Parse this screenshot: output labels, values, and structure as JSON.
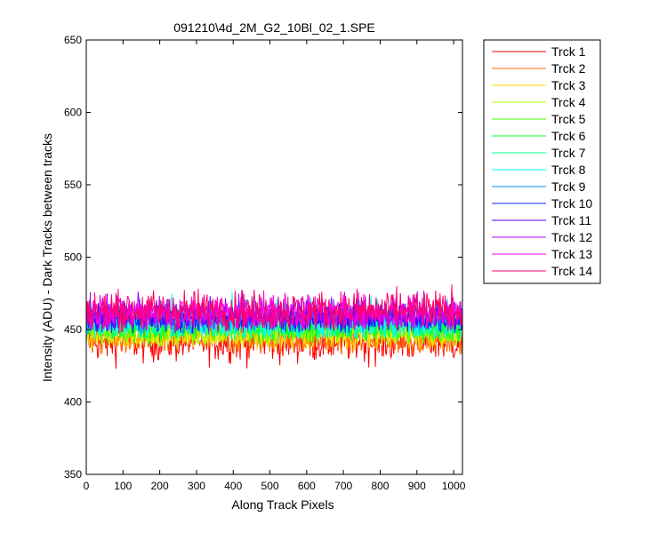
{
  "chart_data": {
    "type": "line",
    "title": "091210\\4d_2M_G2_10Bl_02_1.SPE",
    "xlabel": "Along Track Pixels",
    "ylabel": "Intensity (ADU) - Dark Tracks between tracks",
    "xlim": [
      0,
      1024
    ],
    "ylim": [
      350,
      650
    ],
    "x_ticks": [
      0,
      100,
      200,
      300,
      400,
      500,
      600,
      700,
      800,
      900,
      1000
    ],
    "y_ticks": [
      350,
      400,
      450,
      500,
      550,
      600,
      650
    ],
    "grid": false,
    "legend_position": "outside-top-right",
    "x_start": 1,
    "x_end": 1024,
    "series": [
      {
        "name": "Trck 1",
        "color": "#ff0000",
        "mean": 442,
        "min": 419,
        "max": 462
      },
      {
        "name": "Trck 2",
        "color": "#ff6d00",
        "mean": 443,
        "min": 432,
        "max": 459
      },
      {
        "name": "Trck 3",
        "color": "#ffdb00",
        "mean": 446,
        "min": 436,
        "max": 462
      },
      {
        "name": "Trck 4",
        "color": "#b6ff00",
        "mean": 448,
        "min": 437,
        "max": 463
      },
      {
        "name": "Trck 5",
        "color": "#49ff00",
        "mean": 450,
        "min": 440,
        "max": 465
      },
      {
        "name": "Trck 6",
        "color": "#00ff24",
        "mean": 452,
        "min": 441,
        "max": 467
      },
      {
        "name": "Trck 7",
        "color": "#00ff92",
        "mean": 454,
        "min": 443,
        "max": 469
      },
      {
        "name": "Trck 8",
        "color": "#00ffff",
        "mean": 456,
        "min": 444,
        "max": 482
      },
      {
        "name": "Trck 9",
        "color": "#0092ff",
        "mean": 457,
        "min": 446,
        "max": 472
      },
      {
        "name": "Trck 10",
        "color": "#0024ff",
        "mean": 458,
        "min": 447,
        "max": 474
      },
      {
        "name": "Trck 11",
        "color": "#4900ff",
        "mean": 460,
        "min": 448,
        "max": 476
      },
      {
        "name": "Trck 12",
        "color": "#b600ff",
        "mean": 461,
        "min": 449,
        "max": 480
      },
      {
        "name": "Trck 13",
        "color": "#ff00db",
        "mean": 462,
        "min": 450,
        "max": 482
      },
      {
        "name": "Trck 14",
        "color": "#ff006d",
        "mean": 463,
        "min": 447,
        "max": 485
      }
    ]
  }
}
